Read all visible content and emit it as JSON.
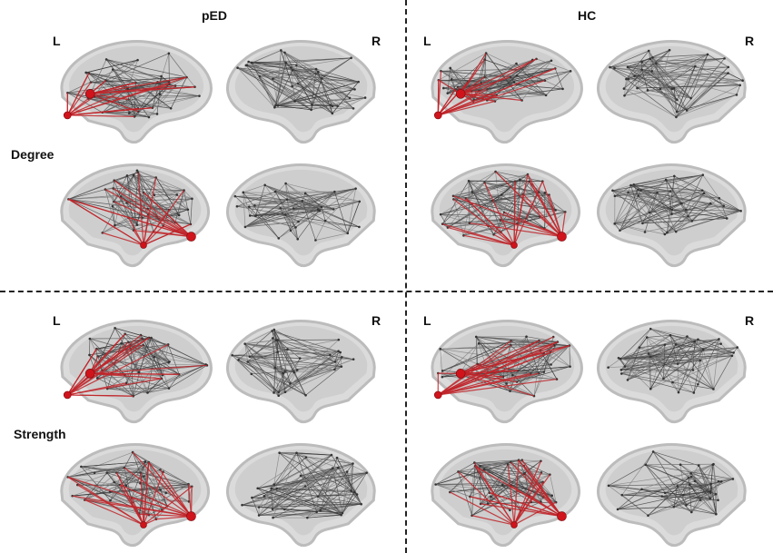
{
  "groups": [
    {
      "title": "pED"
    },
    {
      "title": "HC"
    }
  ],
  "rows": [
    {
      "label": "Degree"
    },
    {
      "label": "Strength"
    }
  ],
  "hemisphere_labels": {
    "left": "L",
    "right": "R"
  },
  "colors": {
    "brain_fill": "#d8d8d8",
    "network_edges": "#3a3a3a",
    "hub_edges": "#c0252a",
    "hub_nodes": "#d0141c"
  }
}
